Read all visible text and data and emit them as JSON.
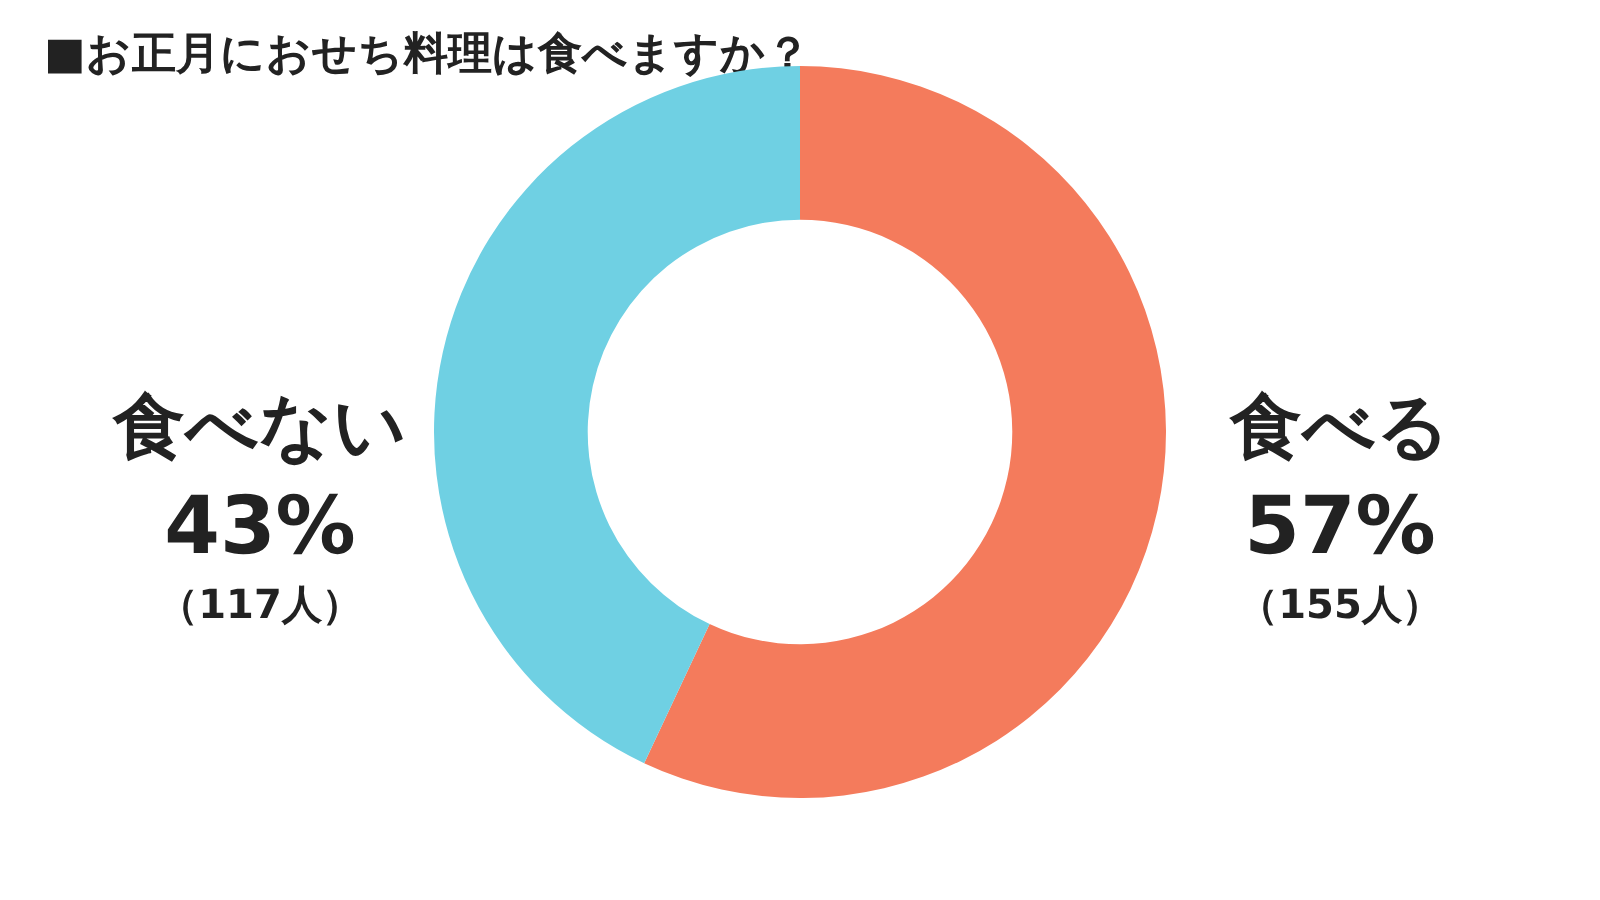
{
  "chart_data": {
    "type": "donut",
    "title": "■お正月におせち料理は食べますか？",
    "categories": [
      "食べる",
      "食べない"
    ],
    "values": [
      57,
      43
    ],
    "colors": [
      "#f47b5c",
      "#6fd0e3"
    ],
    "value_labels": [
      "57%",
      "43%"
    ],
    "annotations": [
      "（155人）",
      "（117人）"
    ],
    "legend": false
  }
}
